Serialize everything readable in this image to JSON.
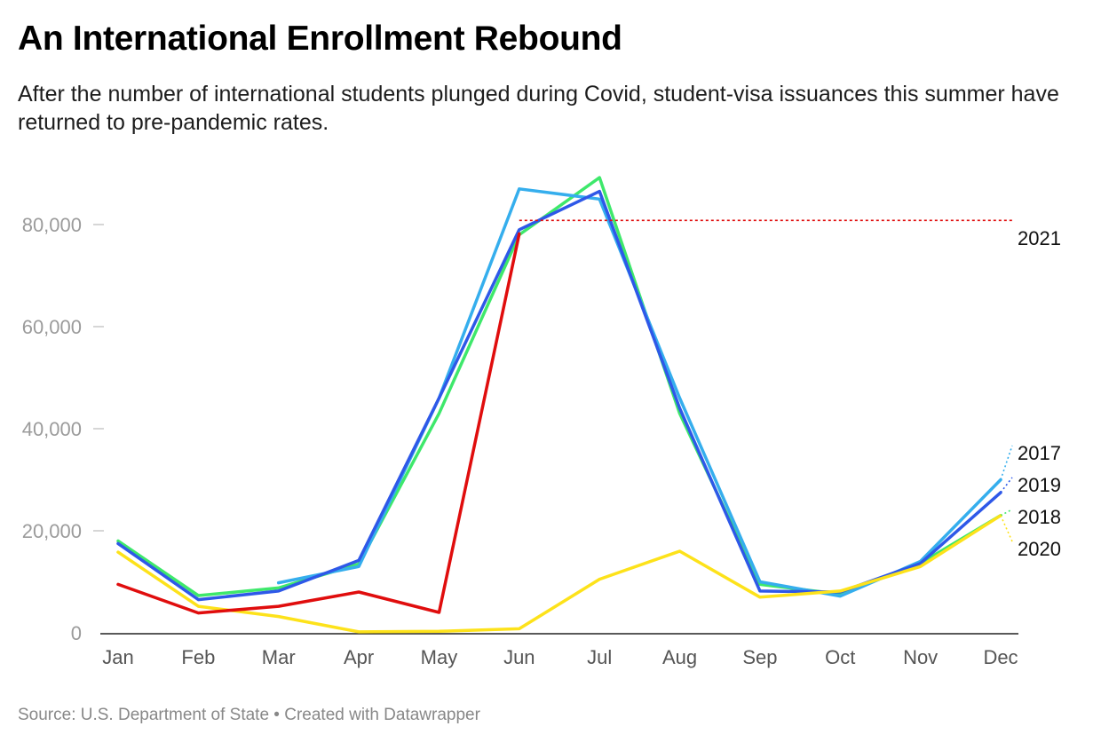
{
  "header": {
    "title": "An International Enrollment Rebound",
    "subtitle": "After the number of international students plunged during Covid, student-visa issuances this summer have returned to pre-pandemic rates."
  },
  "footer": {
    "source": "Source: U.S. Department of State • Created with Datawrapper"
  },
  "chart_data": {
    "type": "line",
    "title": "An International Enrollment Rebound",
    "xlabel": "",
    "ylabel": "",
    "categories": [
      "Jan",
      "Feb",
      "Mar",
      "Apr",
      "May",
      "Jun",
      "Jul",
      "Aug",
      "Sep",
      "Oct",
      "Nov",
      "Dec"
    ],
    "ylim": [
      0,
      90000
    ],
    "yticks": [
      0,
      20000,
      40000,
      60000,
      80000
    ],
    "ytick_labels": [
      "0",
      "20,000",
      "40,000",
      "60,000",
      "80,000"
    ],
    "grid": false,
    "legend": "direct labels at right end of lines",
    "series": [
      {
        "name": "2018",
        "color": "#3ee86b",
        "values": [
          18000,
          7300,
          8800,
          13500,
          43000,
          78000,
          89200,
          43000,
          9500,
          7600,
          13600,
          23000
        ],
        "end_label_value": 23500
      },
      {
        "name": "2017",
        "color": "#35aeed",
        "values": [
          null,
          null,
          9800,
          13000,
          46000,
          87000,
          85000,
          46000,
          10000,
          7200,
          14000,
          30000
        ],
        "end_label_value": 36000
      },
      {
        "name": "2019",
        "color": "#2e58e8",
        "values": [
          17500,
          6500,
          8200,
          14200,
          46000,
          79000,
          86500,
          44000,
          8200,
          8000,
          13600,
          27500
        ],
        "end_label_value": 30000
      },
      {
        "name": "2020",
        "color": "#fde21a",
        "values": [
          15800,
          5200,
          3200,
          200,
          300,
          800,
          10500,
          16000,
          7000,
          8200,
          13000,
          23000
        ],
        "end_label_value": 16800
      },
      {
        "name": "2021",
        "color": "#e00d0d",
        "values": [
          9500,
          3900,
          5200,
          8000,
          4000,
          78200,
          null,
          null,
          null,
          null,
          null,
          null
        ],
        "end_label_value": 78200
      }
    ],
    "end_labels_order": [
      "2021",
      "2017",
      "2019",
      "2018",
      "2020"
    ]
  }
}
